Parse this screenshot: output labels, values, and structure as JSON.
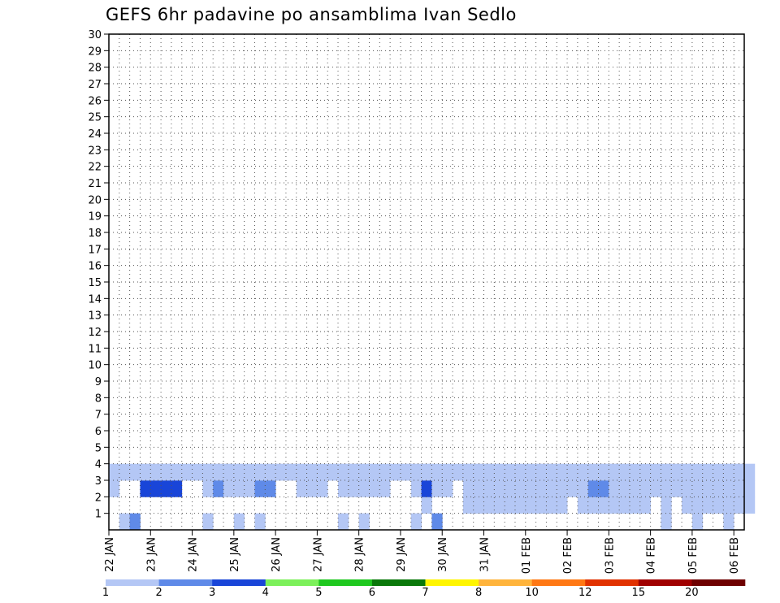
{
  "title": "GEFS 6hr padavine po ansamblima Ivan Sedlo",
  "chart_data": {
    "type": "heatmap",
    "title": "GEFS 6hr padavine po ansamblima Ivan Sedlo",
    "ylabel": "",
    "xlabel": "",
    "y_ticks": [
      1,
      2,
      3,
      4,
      5,
      6,
      7,
      8,
      9,
      10,
      11,
      12,
      13,
      14,
      15,
      16,
      17,
      18,
      19,
      20,
      21,
      22,
      23,
      24,
      25,
      26,
      27,
      28,
      29,
      30
    ],
    "x_ticks": [
      "22 JAN",
      "23 JAN",
      "24 JAN",
      "25 JAN",
      "26 JAN",
      "27 JAN",
      "28 JAN",
      "29 JAN",
      "30 JAN",
      "31 JAN",
      "01 FEB",
      "02 FEB",
      "03 FEB",
      "04 FEB",
      "05 FEB",
      "06 FEB"
    ],
    "x_range_steps": [
      0,
      61
    ],
    "steps_per_day": 4,
    "y_range": [
      0,
      30
    ],
    "grid": true,
    "colorbar": {
      "levels": [
        "1",
        "2",
        "3",
        "4",
        "5",
        "6",
        "7",
        "8",
        "10",
        "12",
        "15",
        "20"
      ],
      "colors": [
        "#b4c7f5",
        "#5f8ae8",
        "#1945d8",
        "#7cf05a",
        "#1fc81f",
        "#0a780a",
        "#fff500",
        "#ffb43c",
        "#ff7814",
        "#e13200",
        "#a00000",
        "#6e0000"
      ]
    },
    "cells": [
      [
        1,
        0,
        1
      ],
      [
        2,
        0,
        2
      ],
      [
        9,
        0,
        1
      ],
      [
        12,
        0,
        1
      ],
      [
        14,
        0,
        1
      ],
      [
        22,
        0,
        1
      ],
      [
        24,
        0,
        1
      ],
      [
        29,
        0,
        1
      ],
      [
        31,
        0,
        2
      ],
      [
        53,
        0,
        1
      ],
      [
        56,
        0,
        1
      ],
      [
        59,
        0,
        1
      ],
      [
        30,
        1,
        1
      ],
      [
        34,
        1,
        1
      ],
      [
        35,
        1,
        1
      ],
      [
        36,
        1,
        1
      ],
      [
        37,
        1,
        1
      ],
      [
        38,
        1,
        1
      ],
      [
        39,
        1,
        1
      ],
      [
        40,
        1,
        1
      ],
      [
        41,
        1,
        1
      ],
      [
        42,
        1,
        1
      ],
      [
        43,
        1,
        1
      ],
      [
        45,
        1,
        1
      ],
      [
        46,
        1,
        1
      ],
      [
        47,
        1,
        1
      ],
      [
        48,
        1,
        1
      ],
      [
        49,
        1,
        1
      ],
      [
        50,
        1,
        1
      ],
      [
        51,
        1,
        1
      ],
      [
        53,
        1,
        1
      ],
      [
        55,
        1,
        1
      ],
      [
        56,
        1,
        1
      ],
      [
        57,
        1,
        1
      ],
      [
        58,
        1,
        1
      ],
      [
        59,
        1,
        1
      ],
      [
        60,
        1,
        1
      ],
      [
        61,
        1,
        1
      ],
      [
        0,
        2,
        1
      ],
      [
        3,
        2,
        3
      ],
      [
        4,
        2,
        3
      ],
      [
        5,
        2,
        3
      ],
      [
        6,
        2,
        3
      ],
      [
        9,
        2,
        1
      ],
      [
        10,
        2,
        2
      ],
      [
        11,
        2,
        1
      ],
      [
        12,
        2,
        1
      ],
      [
        13,
        2,
        1
      ],
      [
        14,
        2,
        2
      ],
      [
        15,
        2,
        2
      ],
      [
        18,
        2,
        1
      ],
      [
        19,
        2,
        1
      ],
      [
        20,
        2,
        1
      ],
      [
        22,
        2,
        1
      ],
      [
        23,
        2,
        1
      ],
      [
        24,
        2,
        1
      ],
      [
        25,
        2,
        1
      ],
      [
        26,
        2,
        1
      ],
      [
        29,
        2,
        1
      ],
      [
        30,
        2,
        3
      ],
      [
        31,
        2,
        1
      ],
      [
        32,
        2,
        1
      ],
      [
        34,
        2,
        1
      ],
      [
        35,
        2,
        1
      ],
      [
        36,
        2,
        1
      ],
      [
        37,
        2,
        1
      ],
      [
        38,
        2,
        1
      ],
      [
        39,
        2,
        1
      ],
      [
        40,
        2,
        1
      ],
      [
        41,
        2,
        1
      ],
      [
        42,
        2,
        1
      ],
      [
        43,
        2,
        1
      ],
      [
        44,
        2,
        1
      ],
      [
        45,
        2,
        1
      ],
      [
        46,
        2,
        2
      ],
      [
        47,
        2,
        2
      ],
      [
        48,
        2,
        1
      ],
      [
        49,
        2,
        1
      ],
      [
        50,
        2,
        1
      ],
      [
        51,
        2,
        1
      ],
      [
        52,
        2,
        1
      ],
      [
        53,
        2,
        1
      ],
      [
        54,
        2,
        1
      ],
      [
        55,
        2,
        1
      ],
      [
        56,
        2,
        1
      ],
      [
        57,
        2,
        1
      ],
      [
        58,
        2,
        1
      ],
      [
        59,
        2,
        1
      ],
      [
        60,
        2,
        1
      ],
      [
        61,
        2,
        1
      ],
      [
        0,
        3,
        1
      ],
      [
        1,
        3,
        1
      ],
      [
        2,
        3,
        1
      ],
      [
        3,
        3,
        1
      ],
      [
        4,
        3,
        1
      ],
      [
        5,
        3,
        1
      ],
      [
        6,
        3,
        1
      ],
      [
        7,
        3,
        1
      ],
      [
        8,
        3,
        1
      ],
      [
        9,
        3,
        1
      ],
      [
        10,
        3,
        1
      ],
      [
        11,
        3,
        1
      ],
      [
        12,
        3,
        1
      ],
      [
        13,
        3,
        1
      ],
      [
        14,
        3,
        1
      ],
      [
        15,
        3,
        1
      ],
      [
        16,
        3,
        1
      ],
      [
        17,
        3,
        1
      ],
      [
        18,
        3,
        1
      ],
      [
        19,
        3,
        1
      ],
      [
        20,
        3,
        1
      ],
      [
        21,
        3,
        1
      ],
      [
        22,
        3,
        1
      ],
      [
        23,
        3,
        1
      ],
      [
        24,
        3,
        1
      ],
      [
        25,
        3,
        1
      ],
      [
        26,
        3,
        1
      ],
      [
        27,
        3,
        1
      ],
      [
        28,
        3,
        1
      ],
      [
        29,
        3,
        1
      ],
      [
        30,
        3,
        1
      ],
      [
        31,
        3,
        1
      ],
      [
        32,
        3,
        1
      ],
      [
        33,
        3,
        1
      ],
      [
        34,
        3,
        1
      ],
      [
        35,
        3,
        1
      ],
      [
        36,
        3,
        1
      ],
      [
        37,
        3,
        1
      ],
      [
        38,
        3,
        1
      ],
      [
        39,
        3,
        1
      ],
      [
        40,
        3,
        1
      ],
      [
        41,
        3,
        1
      ],
      [
        42,
        3,
        1
      ],
      [
        43,
        3,
        1
      ],
      [
        44,
        3,
        1
      ],
      [
        45,
        3,
        1
      ],
      [
        46,
        3,
        1
      ],
      [
        47,
        3,
        1
      ],
      [
        48,
        3,
        1
      ],
      [
        49,
        3,
        1
      ],
      [
        50,
        3,
        1
      ],
      [
        51,
        3,
        1
      ],
      [
        52,
        3,
        1
      ],
      [
        53,
        3,
        1
      ],
      [
        54,
        3,
        1
      ],
      [
        55,
        3,
        1
      ],
      [
        56,
        3,
        1
      ],
      [
        57,
        3,
        1
      ],
      [
        58,
        3,
        1
      ],
      [
        59,
        3,
        1
      ],
      [
        60,
        3,
        1
      ],
      [
        61,
        3,
        1
      ]
    ]
  },
  "labels": {
    "x_ticks": [
      "22 JAN",
      "23 JAN",
      "24 JAN",
      "25 JAN",
      "26 JAN",
      "27 JAN",
      "28 JAN",
      "29 JAN",
      "30 JAN",
      "31 JAN",
      "01 FEB",
      "02 FEB",
      "03 FEB",
      "04 FEB",
      "05 FEB",
      "06 FEB"
    ],
    "colorbar_labels": [
      "1",
      "2",
      "3",
      "4",
      "5",
      "6",
      "7",
      "8",
      "10",
      "12",
      "15",
      "20"
    ]
  },
  "colors": {
    "background": "#ffffff",
    "frame": "#000000",
    "grid": "#555555"
  }
}
